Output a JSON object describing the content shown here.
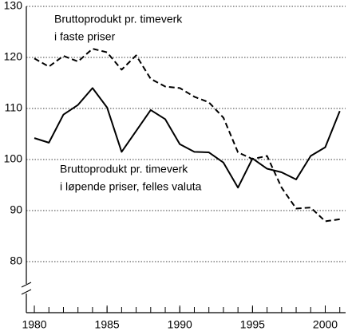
{
  "chart_data": {
    "type": "line",
    "x": [
      1980,
      1981,
      1982,
      1983,
      1984,
      1985,
      1986,
      1987,
      1988,
      1989,
      1990,
      1991,
      1992,
      1993,
      1994,
      1995,
      1996,
      1997,
      1998,
      1999,
      2000,
      2001
    ],
    "series": [
      {
        "name": [
          "Bruttoprodukt pr. timeverk",
          "i faste priser"
        ],
        "color": "#000000",
        "dash": true,
        "values": [
          119.8,
          118.2,
          120.3,
          119.2,
          121.7,
          121.0,
          117.6,
          120.4,
          115.8,
          114.3,
          114.0,
          112.3,
          111.2,
          108.2,
          101.4,
          100.1,
          100.7,
          94.5,
          90.4,
          90.6,
          87.9,
          88.3
        ]
      },
      {
        "name": [
          "Bruttoprodukt pr. timeverk",
          "i løpende priser, felles valuta"
        ],
        "color": "#000000",
        "dash": false,
        "values": [
          104.2,
          103.3,
          108.8,
          110.7,
          114.0,
          110.2,
          101.5,
          105.6,
          109.7,
          107.9,
          103.0,
          101.5,
          101.4,
          99.4,
          94.5,
          100.2,
          98.2,
          97.5,
          96.1,
          100.7,
          102.4,
          109.5
        ]
      }
    ],
    "xlim": [
      1979.45,
      2001.4
    ],
    "xticks": [
      1980,
      1985,
      1990,
      1995,
      2000
    ],
    "ylim": [
      70,
      130
    ],
    "yticks": [
      80,
      90,
      100,
      110,
      120,
      130
    ],
    "grid": true
  }
}
